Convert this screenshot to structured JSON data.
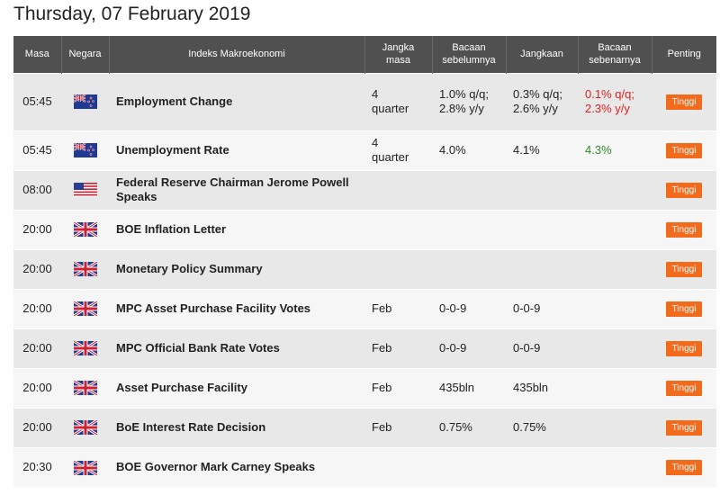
{
  "page_title": "Thursday, 07 February 2019",
  "headers": {
    "time": "Masa",
    "country": "Negara",
    "event": "Indeks Makroekonomi",
    "period": "Jangka masa",
    "previous": "Bacaan sebelumnya",
    "forecast": "Jangkaan",
    "actual": "Bacaan sebenarnya",
    "importance": "Penting"
  },
  "rows": [
    {
      "time": "05:45",
      "flag": "nz-flag-icon",
      "event": "Employment Change",
      "period": "4 quarter",
      "previous": "1.0% q/q; 2.8% y/y",
      "forecast": "0.3% q/q; 2.6% y/y",
      "actual": "0.1% q/q; 2.3% y/y",
      "actual_status": "bad",
      "importance": "Tinggi"
    },
    {
      "time": "05:45",
      "flag": "nz-flag-icon",
      "event": "Unemployment Rate",
      "period": "4 quarter",
      "previous": "4.0%",
      "forecast": "4.1%",
      "actual": "4.3%",
      "actual_status": "good",
      "importance": "Tinggi"
    },
    {
      "time": "08:00",
      "flag": "us-flag-icon",
      "event": "Federal Reserve Chairman Jerome Powell Speaks",
      "period": "",
      "previous": "",
      "forecast": "",
      "actual": "",
      "actual_status": "",
      "importance": "Tinggi"
    },
    {
      "time": "20:00",
      "flag": "uk-flag-icon",
      "event": "BOE Inflation Letter",
      "period": "",
      "previous": "",
      "forecast": "",
      "actual": "",
      "actual_status": "",
      "importance": "Tinggi"
    },
    {
      "time": "20:00",
      "flag": "uk-flag-icon",
      "event": "Monetary Policy Summary",
      "period": "",
      "previous": "",
      "forecast": "",
      "actual": "",
      "actual_status": "",
      "importance": "Tinggi"
    },
    {
      "time": "20:00",
      "flag": "uk-flag-icon",
      "event": "MPC Asset Purchase Facility Votes",
      "period": "Feb",
      "previous": "0-0-9",
      "forecast": "0-0-9",
      "actual": "",
      "actual_status": "",
      "importance": "Tinggi"
    },
    {
      "time": "20:00",
      "flag": "uk-flag-icon",
      "event": "MPC Official Bank Rate Votes",
      "period": "Feb",
      "previous": "0-0-9",
      "forecast": "0-0-9",
      "actual": "",
      "actual_status": "",
      "importance": "Tinggi"
    },
    {
      "time": "20:00",
      "flag": "uk-flag-icon",
      "event": "Asset Purchase Facility",
      "period": "Feb",
      "previous": "435bln",
      "forecast": "435bln",
      "actual": "",
      "actual_status": "",
      "importance": "Tinggi"
    },
    {
      "time": "20:00",
      "flag": "uk-flag-icon",
      "event": "BoE Interest Rate Decision",
      "period": "Feb",
      "previous": "0.75%",
      "forecast": "0.75%",
      "actual": "",
      "actual_status": "",
      "importance": "Tinggi"
    },
    {
      "time": "20:30",
      "flag": "uk-flag-icon",
      "event": "BOE Governor Mark Carney Speaks",
      "period": "",
      "previous": "",
      "forecast": "",
      "actual": "",
      "actual_status": "",
      "importance": "Tinggi"
    }
  ],
  "colors": {
    "header_bg": "#505050",
    "badge": "#f26b1d",
    "negative": "#e02020",
    "positive": "#2e8b2e"
  }
}
